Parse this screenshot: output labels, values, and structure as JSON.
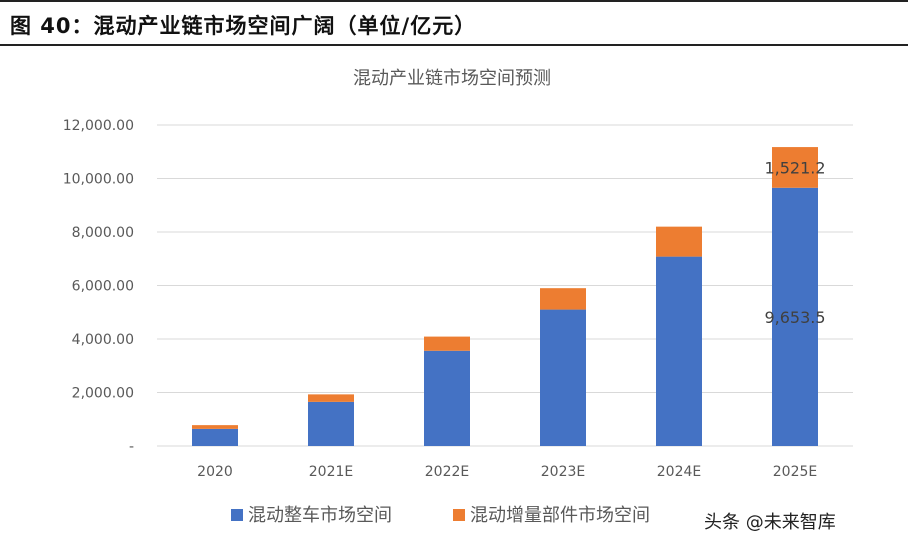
{
  "figure_title": "图 40：混动产业链市场空间广阔（单位/亿元）",
  "watermark": "头条 @未来智库",
  "colors": {
    "series_blue": "#4472C4",
    "series_orange": "#ED7D31",
    "grid": "#d9d9d9",
    "axis_text": "#595959"
  },
  "chart_data": {
    "type": "bar",
    "stacked": true,
    "title": "混动产业链市场空间预测",
    "categories": [
      "2020",
      "2021E",
      "2022E",
      "2023E",
      "2024E",
      "2025E"
    ],
    "series": [
      {
        "name": "混动整车市场空间",
        "color": "#4472C4",
        "values": [
          640,
          1650,
          3560,
          5100,
          7080,
          9653.5
        ]
      },
      {
        "name": "混动增量部件市场空间",
        "color": "#ED7D31",
        "values": [
          140,
          280,
          530,
          800,
          1120,
          1521.2
        ]
      }
    ],
    "y_ticks": [
      "-",
      "2,000.00",
      "4,000.00",
      "6,000.00",
      "8,000.00",
      "10,000.00",
      "12,000.00"
    ],
    "ylim": [
      0,
      12000
    ],
    "grid": true,
    "legend_position": "bottom",
    "data_labels": [
      {
        "category": "2025E",
        "series": "混动增量部件市场空间",
        "text": "1,521.2"
      },
      {
        "category": "2025E",
        "series": "混动整车市场空间",
        "text": "9,653.5"
      }
    ]
  }
}
